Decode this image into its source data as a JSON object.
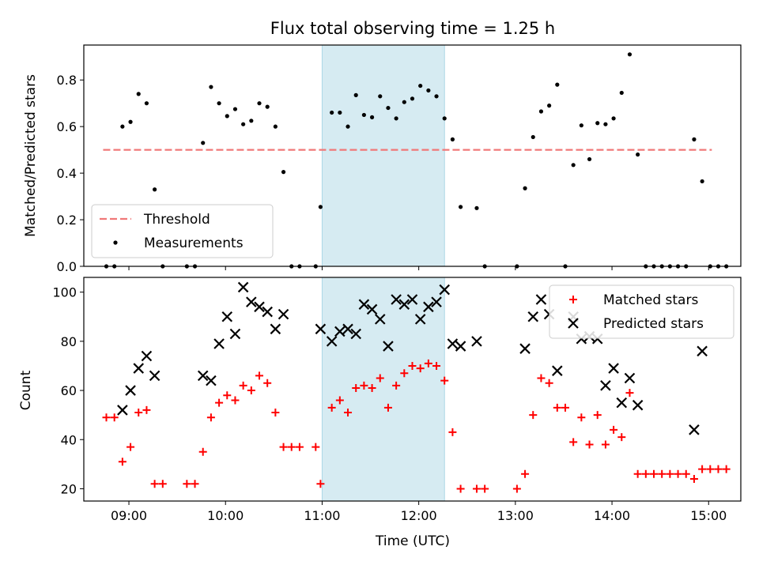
{
  "chart_data": [
    {
      "type": "scatter",
      "title": "Flux total observing time = 1.25 h",
      "ylabel": "Matched/Predicted stars",
      "ylim": [
        0,
        0.95
      ],
      "xlim": [
        "08:32",
        "15:20"
      ],
      "yticks": [
        0.0,
        0.2,
        0.4,
        0.6,
        0.8
      ],
      "ytick_labels": [
        "0.0",
        "0.2",
        "0.4",
        "0.6",
        "0.8"
      ],
      "legend_position": "lower-left",
      "shaded_interval": [
        "11:00",
        "12:16"
      ],
      "threshold": {
        "name": "Threshold",
        "value": 0.5,
        "x_range": [
          "08:44",
          "15:02"
        ],
        "color": "#f07878"
      },
      "series": [
        {
          "name": "Measurements",
          "color": "#000000",
          "points": [
            [
              "08:46",
              0
            ],
            [
              "08:51",
              0
            ],
            [
              "08:56",
              0.6
            ],
            [
              "09:01",
              0.62
            ],
            [
              "09:06",
              0.74
            ],
            [
              "09:11",
              0.7
            ],
            [
              "09:16",
              0.33
            ],
            [
              "09:21",
              0
            ],
            [
              "09:36",
              0
            ],
            [
              "09:41",
              0
            ],
            [
              "09:46",
              0.53
            ],
            [
              "09:51",
              0.77
            ],
            [
              "09:56",
              0.7
            ],
            [
              "10:01",
              0.645
            ],
            [
              "10:06",
              0.675
            ],
            [
              "10:11",
              0.61
            ],
            [
              "10:16",
              0.625
            ],
            [
              "10:21",
              0.7
            ],
            [
              "10:26",
              0.685
            ],
            [
              "10:31",
              0.6
            ],
            [
              "10:36",
              0.405
            ],
            [
              "10:41",
              0
            ],
            [
              "10:46",
              0
            ],
            [
              "10:56",
              0
            ],
            [
              "10:59",
              0.255
            ],
            [
              "11:06",
              0.66
            ],
            [
              "11:11",
              0.66
            ],
            [
              "11:16",
              0.6
            ],
            [
              "11:21",
              0.735
            ],
            [
              "11:26",
              0.65
            ],
            [
              "11:31",
              0.64
            ],
            [
              "11:36",
              0.73
            ],
            [
              "11:41",
              0.68
            ],
            [
              "11:46",
              0.635
            ],
            [
              "11:51",
              0.705
            ],
            [
              "11:56",
              0.72
            ],
            [
              "12:01",
              0.775
            ],
            [
              "12:06",
              0.755
            ],
            [
              "12:11",
              0.73
            ],
            [
              "12:16",
              0.635
            ],
            [
              "12:21",
              0.545
            ],
            [
              "12:26",
              0.255
            ],
            [
              "12:36",
              0.25
            ],
            [
              "12:41",
              0
            ],
            [
              "13:01",
              0
            ],
            [
              "13:06",
              0.335
            ],
            [
              "13:11",
              0.555
            ],
            [
              "13:16",
              0.665
            ],
            [
              "13:21",
              0.69
            ],
            [
              "13:26",
              0.78
            ],
            [
              "13:31",
              0
            ],
            [
              "13:36",
              0.435
            ],
            [
              "13:41",
              0.605
            ],
            [
              "13:46",
              0.46
            ],
            [
              "13:51",
              0.615
            ],
            [
              "13:56",
              0.61
            ],
            [
              "14:01",
              0.635
            ],
            [
              "14:06",
              0.745
            ],
            [
              "14:11",
              0.91
            ],
            [
              "14:16",
              0.48
            ],
            [
              "14:21",
              0
            ],
            [
              "14:26",
              0
            ],
            [
              "14:31",
              0
            ],
            [
              "14:36",
              0
            ],
            [
              "14:41",
              0
            ],
            [
              "14:46",
              0
            ],
            [
              "14:51",
              0.545
            ],
            [
              "14:56",
              0.365
            ],
            [
              "15:01",
              0
            ],
            [
              "15:06",
              0
            ],
            [
              "15:11",
              0
            ]
          ]
        }
      ]
    },
    {
      "type": "scatter",
      "xlabel": "Time (UTC)",
      "ylabel": "Count",
      "ylim": [
        15,
        106
      ],
      "xlim": [
        "08:32",
        "15:20"
      ],
      "yticks": [
        20,
        40,
        60,
        80,
        100
      ],
      "ytick_labels": [
        "20",
        "40",
        "60",
        "80",
        "100"
      ],
      "xtick_labels": [
        "09:00",
        "10:00",
        "11:00",
        "12:00",
        "13:00",
        "14:00",
        "15:00"
      ],
      "legend_position": "upper-right",
      "shaded_interval": [
        "11:00",
        "12:16"
      ],
      "series": [
        {
          "name": "Matched stars",
          "marker": "+",
          "color": "#ff0000",
          "points": [
            [
              "08:46",
              49
            ],
            [
              "08:51",
              49
            ],
            [
              "08:56",
              31
            ],
            [
              "09:01",
              37
            ],
            [
              "09:06",
              51
            ],
            [
              "09:11",
              52
            ],
            [
              "09:16",
              22
            ],
            [
              "09:21",
              22
            ],
            [
              "09:36",
              22
            ],
            [
              "09:41",
              22
            ],
            [
              "09:46",
              35
            ],
            [
              "09:51",
              49
            ],
            [
              "09:56",
              55
            ],
            [
              "10:01",
              58
            ],
            [
              "10:06",
              56
            ],
            [
              "10:11",
              62
            ],
            [
              "10:16",
              60
            ],
            [
              "10:21",
              66
            ],
            [
              "10:26",
              63
            ],
            [
              "10:31",
              51
            ],
            [
              "10:36",
              37
            ],
            [
              "10:41",
              37
            ],
            [
              "10:46",
              37
            ],
            [
              "10:56",
              37
            ],
            [
              "10:59",
              22
            ],
            [
              "11:06",
              53
            ],
            [
              "11:11",
              56
            ],
            [
              "11:16",
              51
            ],
            [
              "11:21",
              61
            ],
            [
              "11:26",
              62
            ],
            [
              "11:31",
              61
            ],
            [
              "11:36",
              65
            ],
            [
              "11:41",
              53
            ],
            [
              "11:46",
              62
            ],
            [
              "11:51",
              67
            ],
            [
              "11:56",
              70
            ],
            [
              "12:01",
              69
            ],
            [
              "12:06",
              71
            ],
            [
              "12:11",
              70
            ],
            [
              "12:16",
              64
            ],
            [
              "12:21",
              43
            ],
            [
              "12:26",
              20
            ],
            [
              "12:36",
              20
            ],
            [
              "12:41",
              20
            ],
            [
              "13:01",
              20
            ],
            [
              "13:06",
              26
            ],
            [
              "13:11",
              50
            ],
            [
              "13:16",
              65
            ],
            [
              "13:21",
              63
            ],
            [
              "13:26",
              53
            ],
            [
              "13:31",
              53
            ],
            [
              "13:36",
              39
            ],
            [
              "13:41",
              49
            ],
            [
              "13:46",
              38
            ],
            [
              "13:51",
              50
            ],
            [
              "13:56",
              38
            ],
            [
              "14:01",
              44
            ],
            [
              "14:06",
              41
            ],
            [
              "14:11",
              59
            ],
            [
              "14:16",
              26
            ],
            [
              "14:21",
              26
            ],
            [
              "14:26",
              26
            ],
            [
              "14:31",
              26
            ],
            [
              "14:36",
              26
            ],
            [
              "14:41",
              26
            ],
            [
              "14:46",
              26
            ],
            [
              "14:51",
              24
            ],
            [
              "14:56",
              28
            ],
            [
              "15:01",
              28
            ],
            [
              "15:06",
              28
            ],
            [
              "15:11",
              28
            ]
          ]
        },
        {
          "name": "Predicted stars",
          "marker": "x",
          "color": "#000000",
          "points": [
            [
              "08:56",
              52
            ],
            [
              "09:01",
              60
            ],
            [
              "09:06",
              69
            ],
            [
              "09:11",
              74
            ],
            [
              "09:16",
              66
            ],
            [
              "09:46",
              66
            ],
            [
              "09:51",
              64
            ],
            [
              "09:56",
              79
            ],
            [
              "10:01",
              90
            ],
            [
              "10:06",
              83
            ],
            [
              "10:11",
              102
            ],
            [
              "10:16",
              96
            ],
            [
              "10:21",
              94
            ],
            [
              "10:26",
              92
            ],
            [
              "10:31",
              85
            ],
            [
              "10:36",
              91
            ],
            [
              "10:59",
              85
            ],
            [
              "11:06",
              80
            ],
            [
              "11:11",
              84
            ],
            [
              "11:16",
              85
            ],
            [
              "11:21",
              83
            ],
            [
              "11:26",
              95
            ],
            [
              "11:31",
              93
            ],
            [
              "11:36",
              89
            ],
            [
              "11:41",
              78
            ],
            [
              "11:46",
              97
            ],
            [
              "11:51",
              95
            ],
            [
              "11:56",
              97
            ],
            [
              "12:01",
              89
            ],
            [
              "12:06",
              94
            ],
            [
              "12:11",
              96
            ],
            [
              "12:16",
              101
            ],
            [
              "12:21",
              79
            ],
            [
              "12:26",
              78
            ],
            [
              "12:36",
              80
            ],
            [
              "13:06",
              77
            ],
            [
              "13:11",
              90
            ],
            [
              "13:16",
              97
            ],
            [
              "13:21",
              91
            ],
            [
              "13:26",
              68
            ],
            [
              "13:36",
              90
            ],
            [
              "13:41",
              81
            ],
            [
              "13:46",
              82
            ],
            [
              "13:51",
              81
            ],
            [
              "13:56",
              62
            ],
            [
              "14:01",
              69
            ],
            [
              "14:06",
              55
            ],
            [
              "14:11",
              65
            ],
            [
              "14:16",
              54
            ],
            [
              "14:51",
              44
            ],
            [
              "14:56",
              76
            ]
          ]
        }
      ]
    }
  ]
}
